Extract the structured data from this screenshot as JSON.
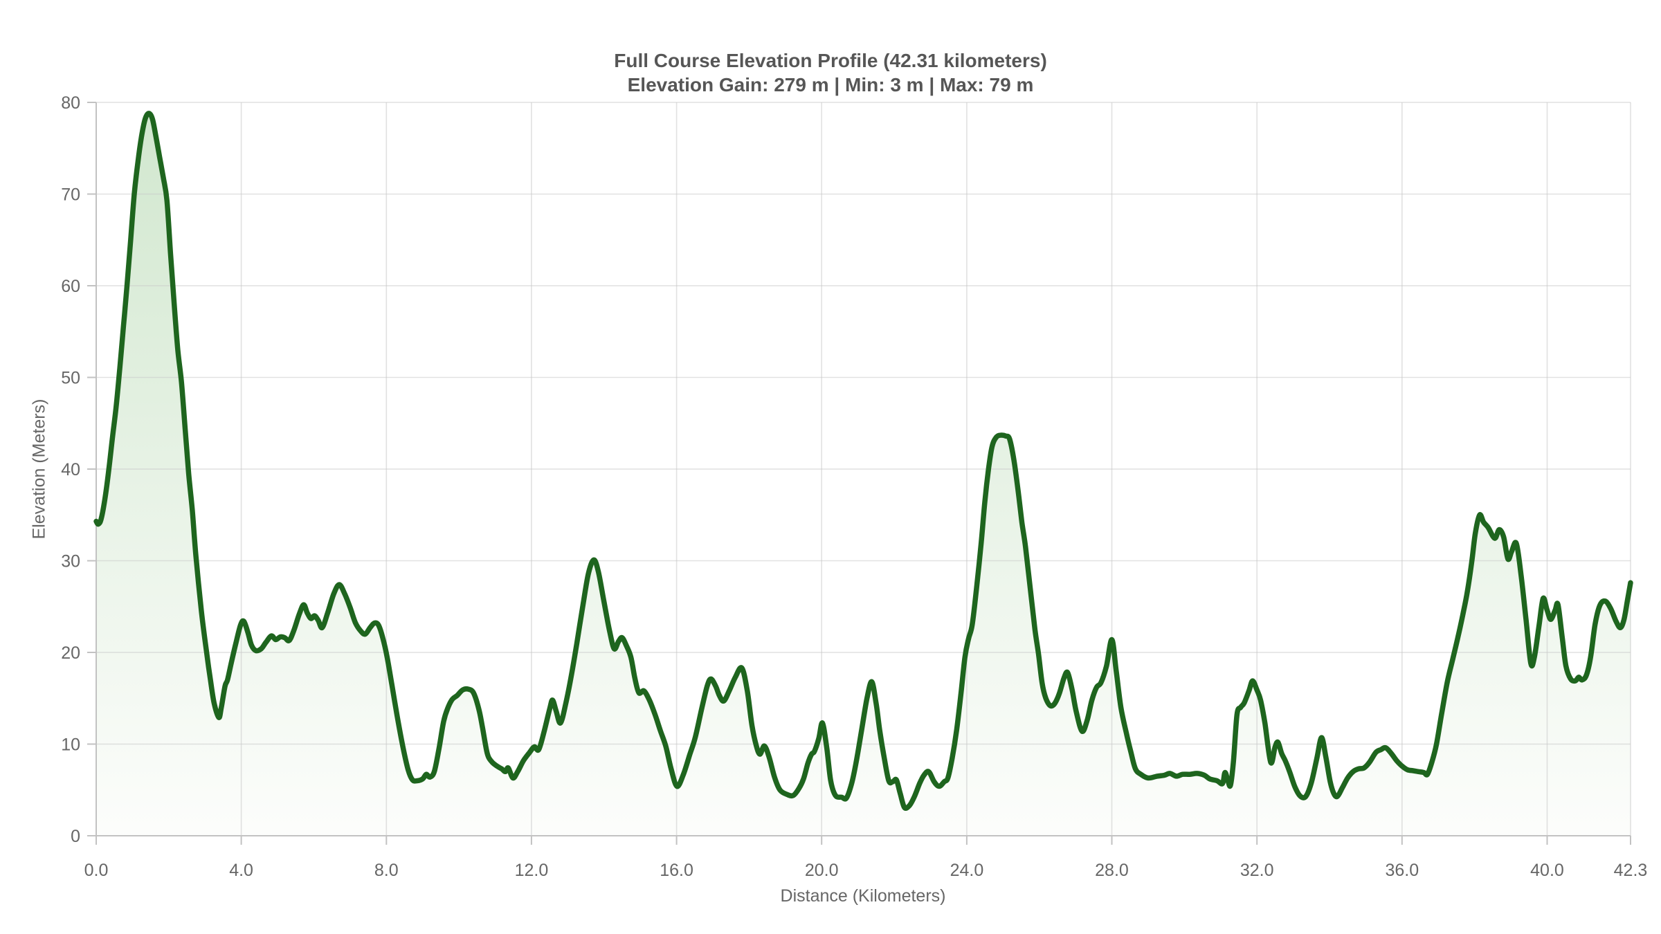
{
  "title": {
    "line1": "Full Course Elevation Profile (42.31 kilometers)",
    "line2": "Elevation Gain: 279 m | Min: 3 m | Max: 79 m"
  },
  "colors": {
    "line": "#1e651e",
    "fill_top": "#cbe4c8",
    "fill_bottom": "#fcfdfb",
    "grid": "#c9c9c9",
    "axis": "#c2c2c2",
    "tick_text": "#666666",
    "title_text": "#565656"
  },
  "chart_data": {
    "type": "area",
    "title": "Full Course Elevation Profile (42.31 kilometers)",
    "subtitle": "Elevation Gain: 279 m | Min: 3 m | Max: 79 m",
    "xlabel": "Distance (Kilometers)",
    "ylabel": "Elevation (Meters)",
    "xlim": [
      0,
      42.3
    ],
    "ylim": [
      0,
      80
    ],
    "grid": true,
    "legend": "none",
    "x_ticks": [
      {
        "v": 0,
        "label": "0.0"
      },
      {
        "v": 4,
        "label": "4.0"
      },
      {
        "v": 8,
        "label": "8.0"
      },
      {
        "v": 12,
        "label": "12.0"
      },
      {
        "v": 16,
        "label": "16.0"
      },
      {
        "v": 20,
        "label": "20.0"
      },
      {
        "v": 24,
        "label": "24.0"
      },
      {
        "v": 28,
        "label": "28.0"
      },
      {
        "v": 32,
        "label": "32.0"
      },
      {
        "v": 36,
        "label": "36.0"
      },
      {
        "v": 40,
        "label": "40.0"
      },
      {
        "v": 42.3,
        "label": "42.3"
      }
    ],
    "y_ticks": [
      {
        "v": 0,
        "label": "0"
      },
      {
        "v": 10,
        "label": "10"
      },
      {
        "v": 20,
        "label": "20"
      },
      {
        "v": 30,
        "label": "30"
      },
      {
        "v": 40,
        "label": "40"
      },
      {
        "v": 50,
        "label": "50"
      },
      {
        "v": 60,
        "label": "60"
      },
      {
        "v": 70,
        "label": "70"
      },
      {
        "v": 80,
        "label": "80"
      }
    ],
    "points": [
      [
        0,
        34.3
      ],
      [
        0.06,
        34
      ],
      [
        0.14,
        34.6
      ],
      [
        0.25,
        37
      ],
      [
        0.35,
        40
      ],
      [
        0.45,
        43.5
      ],
      [
        0.55,
        46.8
      ],
      [
        0.65,
        51
      ],
      [
        0.75,
        55.5
      ],
      [
        0.85,
        60
      ],
      [
        0.95,
        65
      ],
      [
        1.05,
        70
      ],
      [
        1.15,
        73.5
      ],
      [
        1.25,
        76.3
      ],
      [
        1.35,
        78.2
      ],
      [
        1.45,
        78.8
      ],
      [
        1.55,
        78.2
      ],
      [
        1.65,
        76.2
      ],
      [
        1.75,
        74
      ],
      [
        1.85,
        71.8
      ],
      [
        1.95,
        69.3
      ],
      [
        2.05,
        63.5
      ],
      [
        2.15,
        58
      ],
      [
        2.25,
        53
      ],
      [
        2.35,
        49.5
      ],
      [
        2.45,
        44.5
      ],
      [
        2.55,
        39.5
      ],
      [
        2.65,
        35.5
      ],
      [
        2.75,
        30.5
      ],
      [
        2.9,
        24.5
      ],
      [
        3.05,
        19.8
      ],
      [
        3.15,
        17
      ],
      [
        3.25,
        14.5
      ],
      [
        3.38,
        12.9
      ],
      [
        3.45,
        14
      ],
      [
        3.55,
        16.3
      ],
      [
        3.62,
        17
      ],
      [
        3.72,
        18.8
      ],
      [
        3.85,
        21
      ],
      [
        3.98,
        23
      ],
      [
        4.07,
        23.4
      ],
      [
        4.18,
        22.2
      ],
      [
        4.28,
        20.8
      ],
      [
        4.4,
        20.2
      ],
      [
        4.55,
        20.4
      ],
      [
        4.68,
        21.1
      ],
      [
        4.83,
        21.8
      ],
      [
        4.95,
        21.4
      ],
      [
        5.08,
        21.7
      ],
      [
        5.2,
        21.6
      ],
      [
        5.32,
        21.3
      ],
      [
        5.45,
        22.4
      ],
      [
        5.6,
        24.2
      ],
      [
        5.72,
        25.2
      ],
      [
        5.82,
        24.3
      ],
      [
        5.92,
        23.7
      ],
      [
        6.02,
        24
      ],
      [
        6.12,
        23.5
      ],
      [
        6.23,
        22.7
      ],
      [
        6.38,
        24.3
      ],
      [
        6.55,
        26.4
      ],
      [
        6.7,
        27.4
      ],
      [
        6.85,
        26.4
      ],
      [
        7,
        24.9
      ],
      [
        7.15,
        23.2
      ],
      [
        7.3,
        22.3
      ],
      [
        7.42,
        22
      ],
      [
        7.55,
        22.7
      ],
      [
        7.67,
        23.2
      ],
      [
        7.78,
        23
      ],
      [
        7.9,
        21.6
      ],
      [
        8.02,
        19.5
      ],
      [
        8.15,
        16.5
      ],
      [
        8.3,
        13
      ],
      [
        8.45,
        9.8
      ],
      [
        8.6,
        7.2
      ],
      [
        8.72,
        6.1
      ],
      [
        8.85,
        6
      ],
      [
        9,
        6.2
      ],
      [
        9.1,
        6.7
      ],
      [
        9.2,
        6.4
      ],
      [
        9.32,
        7
      ],
      [
        9.45,
        9.5
      ],
      [
        9.58,
        12.5
      ],
      [
        9.7,
        14
      ],
      [
        9.82,
        14.9
      ],
      [
        9.95,
        15.3
      ],
      [
        10.1,
        15.9
      ],
      [
        10.25,
        16
      ],
      [
        10.4,
        15.6
      ],
      [
        10.55,
        13.8
      ],
      [
        10.65,
        11.8
      ],
      [
        10.78,
        9
      ],
      [
        10.9,
        8.1
      ],
      [
        11.05,
        7.6
      ],
      [
        11.18,
        7.3
      ],
      [
        11.28,
        7
      ],
      [
        11.36,
        7.4
      ],
      [
        11.49,
        6.3
      ],
      [
        11.62,
        7
      ],
      [
        11.78,
        8.2
      ],
      [
        11.95,
        9.1
      ],
      [
        12.08,
        9.7
      ],
      [
        12.2,
        9.4
      ],
      [
        12.35,
        11.4
      ],
      [
        12.5,
        13.8
      ],
      [
        12.58,
        14.8
      ],
      [
        12.68,
        13.6
      ],
      [
        12.8,
        12.3
      ],
      [
        12.95,
        14.5
      ],
      [
        13.1,
        17.5
      ],
      [
        13.25,
        21
      ],
      [
        13.42,
        25.2
      ],
      [
        13.57,
        28.6
      ],
      [
        13.72,
        30.1
      ],
      [
        13.85,
        28.7
      ],
      [
        14,
        25.5
      ],
      [
        14.15,
        22.4
      ],
      [
        14.28,
        20.4
      ],
      [
        14.4,
        21.2
      ],
      [
        14.5,
        21.6
      ],
      [
        14.62,
        20.7
      ],
      [
        14.74,
        19.5
      ],
      [
        14.85,
        17.2
      ],
      [
        14.96,
        15.6
      ],
      [
        15.1,
        15.8
      ],
      [
        15.25,
        14.8
      ],
      [
        15.4,
        13.3
      ],
      [
        15.55,
        11.5
      ],
      [
        15.7,
        9.8
      ],
      [
        15.85,
        7.3
      ],
      [
        16.01,
        5.4
      ],
      [
        16.18,
        6.6
      ],
      [
        16.36,
        8.8
      ],
      [
        16.52,
        10.8
      ],
      [
        16.7,
        14
      ],
      [
        16.85,
        16.4
      ],
      [
        16.95,
        17.1
      ],
      [
        17.08,
        16.3
      ],
      [
        17.18,
        15.3
      ],
      [
        17.3,
        14.7
      ],
      [
        17.45,
        15.8
      ],
      [
        17.62,
        17.3
      ],
      [
        17.8,
        18.3
      ],
      [
        17.95,
        15.8
      ],
      [
        18.08,
        12
      ],
      [
        18.2,
        9.8
      ],
      [
        18.3,
        8.9
      ],
      [
        18.42,
        9.8
      ],
      [
        18.55,
        8.6
      ],
      [
        18.7,
        6.4
      ],
      [
        18.85,
        5
      ],
      [
        19.05,
        4.5
      ],
      [
        19.22,
        4.4
      ],
      [
        19.38,
        5.2
      ],
      [
        19.5,
        6.2
      ],
      [
        19.62,
        7.9
      ],
      [
        19.72,
        8.9
      ],
      [
        19.8,
        9.2
      ],
      [
        19.92,
        10.6
      ],
      [
        20.02,
        12.3
      ],
      [
        20.14,
        9.6
      ],
      [
        20.25,
        6
      ],
      [
        20.38,
        4.4
      ],
      [
        20.55,
        4.2
      ],
      [
        20.68,
        4.1
      ],
      [
        20.82,
        5.6
      ],
      [
        20.95,
        8
      ],
      [
        21.1,
        11.5
      ],
      [
        21.25,
        15
      ],
      [
        21.38,
        16.8
      ],
      [
        21.5,
        14.5
      ],
      [
        21.6,
        11.5
      ],
      [
        21.72,
        8.6
      ],
      [
        21.85,
        6
      ],
      [
        21.96,
        5.9
      ],
      [
        22.06,
        6.1
      ],
      [
        22.16,
        4.7
      ],
      [
        22.28,
        3.1
      ],
      [
        22.42,
        3.3
      ],
      [
        22.56,
        4.3
      ],
      [
        22.7,
        5.7
      ],
      [
        22.82,
        6.6
      ],
      [
        22.95,
        7
      ],
      [
        23.1,
        5.9
      ],
      [
        23.24,
        5.4
      ],
      [
        23.38,
        5.9
      ],
      [
        23.48,
        6.3
      ],
      [
        23.6,
        8.5
      ],
      [
        23.72,
        11.5
      ],
      [
        23.84,
        15.5
      ],
      [
        23.95,
        19.5
      ],
      [
        24.05,
        21.5
      ],
      [
        24.15,
        23
      ],
      [
        24.27,
        27
      ],
      [
        24.4,
        32
      ],
      [
        24.5,
        36.5
      ],
      [
        24.6,
        40
      ],
      [
        24.7,
        42.5
      ],
      [
        24.82,
        43.5
      ],
      [
        24.95,
        43.7
      ],
      [
        25.08,
        43.6
      ],
      [
        25.18,
        43.3
      ],
      [
        25.3,
        41
      ],
      [
        25.42,
        37.5
      ],
      [
        25.52,
        34.2
      ],
      [
        25.62,
        31.5
      ],
      [
        25.75,
        27
      ],
      [
        25.88,
        22.5
      ],
      [
        25.98,
        19.8
      ],
      [
        26.08,
        16.6
      ],
      [
        26.18,
        15
      ],
      [
        26.3,
        14.2
      ],
      [
        26.42,
        14.4
      ],
      [
        26.55,
        15.5
      ],
      [
        26.68,
        17.2
      ],
      [
        26.78,
        17.8
      ],
      [
        26.9,
        16
      ],
      [
        27.02,
        13.5
      ],
      [
        27.18,
        11.4
      ],
      [
        27.32,
        12.6
      ],
      [
        27.45,
        14.8
      ],
      [
        27.58,
        16.2
      ],
      [
        27.7,
        16.7
      ],
      [
        27.85,
        18.5
      ],
      [
        28,
        21.4
      ],
      [
        28.12,
        18
      ],
      [
        28.25,
        14
      ],
      [
        28.4,
        11.2
      ],
      [
        28.52,
        9.2
      ],
      [
        28.65,
        7.3
      ],
      [
        28.8,
        6.7
      ],
      [
        29,
        6.3
      ],
      [
        29.25,
        6.5
      ],
      [
        29.45,
        6.6
      ],
      [
        29.6,
        6.8
      ],
      [
        29.78,
        6.5
      ],
      [
        29.95,
        6.7
      ],
      [
        30.15,
        6.7
      ],
      [
        30.35,
        6.8
      ],
      [
        30.55,
        6.6
      ],
      [
        30.7,
        6.2
      ],
      [
        30.9,
        6
      ],
      [
        31.05,
        5.7
      ],
      [
        31.12,
        6.9
      ],
      [
        31.2,
        6
      ],
      [
        31.27,
        5.5
      ],
      [
        31.35,
        8
      ],
      [
        31.45,
        13.2
      ],
      [
        31.55,
        14
      ],
      [
        31.65,
        14.5
      ],
      [
        31.78,
        15.8
      ],
      [
        31.88,
        16.9
      ],
      [
        32,
        15.9
      ],
      [
        32.1,
        14.8
      ],
      [
        32.22,
        12.3
      ],
      [
        32.38,
        8
      ],
      [
        32.5,
        9.7
      ],
      [
        32.58,
        10.2
      ],
      [
        32.68,
        9
      ],
      [
        32.78,
        8.2
      ],
      [
        32.9,
        7
      ],
      [
        33.05,
        5.3
      ],
      [
        33.2,
        4.3
      ],
      [
        33.35,
        4.3
      ],
      [
        33.5,
        5.8
      ],
      [
        33.65,
        8.4
      ],
      [
        33.78,
        10.7
      ],
      [
        33.9,
        8.6
      ],
      [
        34.02,
        5.9
      ],
      [
        34.12,
        4.6
      ],
      [
        34.22,
        4.3
      ],
      [
        34.35,
        5.2
      ],
      [
        34.5,
        6.3
      ],
      [
        34.65,
        7
      ],
      [
        34.8,
        7.3
      ],
      [
        34.95,
        7.4
      ],
      [
        35.1,
        8
      ],
      [
        35.28,
        9.1
      ],
      [
        35.42,
        9.4
      ],
      [
        35.55,
        9.6
      ],
      [
        35.7,
        9
      ],
      [
        35.85,
        8.2
      ],
      [
        36,
        7.6
      ],
      [
        36.15,
        7.2
      ],
      [
        36.3,
        7.1
      ],
      [
        36.45,
        7
      ],
      [
        36.6,
        6.9
      ],
      [
        36.7,
        6.7
      ],
      [
        36.82,
        8
      ],
      [
        36.95,
        10
      ],
      [
        37.1,
        13.5
      ],
      [
        37.25,
        16.8
      ],
      [
        37.4,
        19.3
      ],
      [
        37.55,
        21.8
      ],
      [
        37.68,
        24.2
      ],
      [
        37.8,
        26.6
      ],
      [
        37.92,
        29.8
      ],
      [
        38.02,
        33
      ],
      [
        38.14,
        35
      ],
      [
        38.25,
        34.2
      ],
      [
        38.38,
        33.6
      ],
      [
        38.5,
        32.7
      ],
      [
        38.58,
        32.5
      ],
      [
        38.68,
        33.4
      ],
      [
        38.8,
        32.6
      ],
      [
        38.92,
        30.2
      ],
      [
        39.02,
        31
      ],
      [
        39.15,
        31.9
      ],
      [
        39.28,
        28.5
      ],
      [
        39.42,
        23.5
      ],
      [
        39.55,
        18.8
      ],
      [
        39.65,
        19.5
      ],
      [
        39.78,
        23
      ],
      [
        39.89,
        25.9
      ],
      [
        40,
        24.6
      ],
      [
        40.1,
        23.6
      ],
      [
        40.22,
        24.6
      ],
      [
        40.3,
        25.2
      ],
      [
        40.42,
        21.5
      ],
      [
        40.52,
        18.5
      ],
      [
        40.65,
        17.1
      ],
      [
        40.78,
        16.9
      ],
      [
        40.87,
        17.3
      ],
      [
        40.96,
        17
      ],
      [
        41.08,
        17.5
      ],
      [
        41.2,
        19.5
      ],
      [
        41.32,
        23
      ],
      [
        41.45,
        25.1
      ],
      [
        41.6,
        25.6
      ],
      [
        41.75,
        24.8
      ],
      [
        41.9,
        23.4
      ],
      [
        42.02,
        22.7
      ],
      [
        42.12,
        23.6
      ],
      [
        42.22,
        25.8
      ],
      [
        42.3,
        27.6
      ]
    ]
  }
}
